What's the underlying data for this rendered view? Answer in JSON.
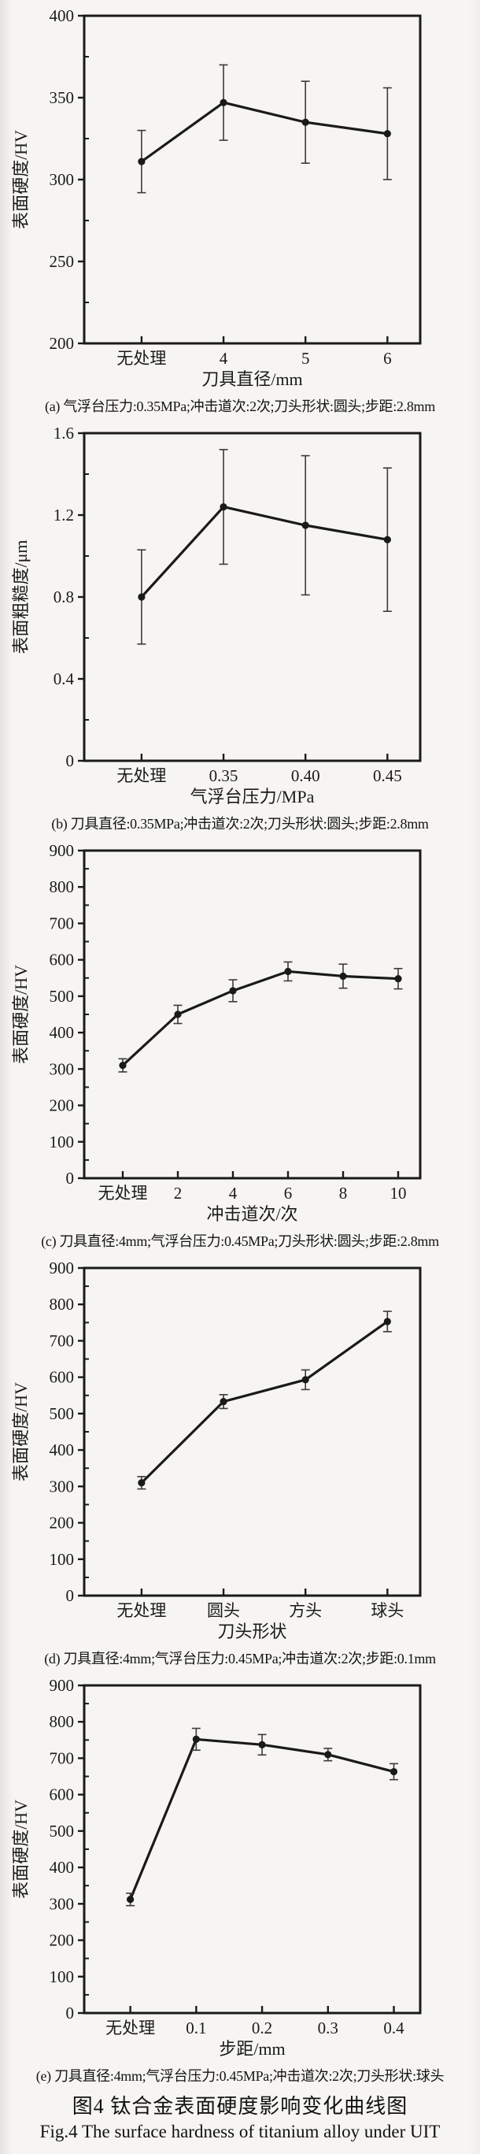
{
  "figure": {
    "title_cn": "图4  钛合金表面硬度影响变化曲线图",
    "title_en": "Fig.4  The surface hardness of titanium alloy under UIT",
    "ink_color": "#1a1a1a",
    "errorbar_color": "#3a3a3a",
    "paper_color": "#f6f5f2"
  },
  "chart_data": [
    {
      "id": "a",
      "type": "line",
      "ylabel": "表面硬度/HV",
      "xlabel": "刀具直径/mm",
      "ylim": [
        200,
        400
      ],
      "ytick_step": 50,
      "yminor_step": 25,
      "ydecimals": 0,
      "grid": "off",
      "legend": "none",
      "categories": [
        "无处理",
        "4",
        "5",
        "6"
      ],
      "values": [
        311,
        347,
        335,
        328
      ],
      "errors": [
        19,
        23,
        25,
        28
      ],
      "caption": "(a) 气浮台压力:0.35MPa;冲击道次:2次;刀头形状:圆头;步距:2.8mm"
    },
    {
      "id": "b",
      "type": "line",
      "ylabel": "表面粗糙度/μm",
      "xlabel": "气浮台压力/MPa",
      "ylim": [
        0,
        1.6
      ],
      "ytick_step": 0.4,
      "yminor_step": 0.2,
      "ydecimals": 1,
      "grid": "off",
      "legend": "none",
      "categories": [
        "无处理",
        "0.35",
        "0.40",
        "0.45"
      ],
      "values": [
        0.8,
        1.24,
        1.15,
        1.08
      ],
      "errors": [
        0.23,
        0.28,
        0.34,
        0.35
      ],
      "caption": "(b) 刀具直径:0.35MPa;冲击道次:2次;刀头形状:圆头;步距:2.8mm"
    },
    {
      "id": "c",
      "type": "line",
      "ylabel": "表面硬度/HV",
      "xlabel": "冲击道次/次",
      "ylim": [
        0,
        900
      ],
      "ytick_step": 100,
      "yminor_step": 50,
      "ydecimals": 0,
      "grid": "off",
      "legend": "none",
      "categories": [
        "无处理",
        "2",
        "4",
        "6",
        "8",
        "10"
      ],
      "values": [
        310,
        450,
        515,
        568,
        555,
        548
      ],
      "errors": [
        18,
        25,
        30,
        26,
        33,
        28
      ],
      "caption": "(c) 刀具直径:4mm;气浮台压力:0.45MPa;刀头形状:圆头;步距:2.8mm"
    },
    {
      "id": "d",
      "type": "line",
      "ylabel": "表面硬度/HV",
      "xlabel": "刀头形状",
      "ylim": [
        0,
        900
      ],
      "ytick_step": 100,
      "yminor_step": 50,
      "ydecimals": 0,
      "grid": "off",
      "legend": "none",
      "categories": [
        "无处理",
        "圆头",
        "方头",
        "球头"
      ],
      "values": [
        310,
        533,
        593,
        753
      ],
      "errors": [
        17,
        19,
        27,
        28
      ],
      "caption": "(d) 刀具直径:4mm;气浮台压力:0.45MPa;冲击道次:2次;步距:0.1mm"
    },
    {
      "id": "e",
      "type": "line",
      "ylabel": "表面硬度/HV",
      "xlabel": "步距/mm",
      "ylim": [
        0,
        900
      ],
      "ytick_step": 100,
      "yminor_step": 50,
      "ydecimals": 0,
      "grid": "off",
      "legend": "none",
      "categories": [
        "无处理",
        "0.1",
        "0.2",
        "0.3",
        "0.4"
      ],
      "values": [
        312,
        752,
        737,
        710,
        663
      ],
      "errors": [
        17,
        30,
        28,
        17,
        22
      ],
      "caption": "(e) 刀具直径:4mm;气浮台压力:0.45MPa;冲击道次:2次;刀头形状:球头"
    }
  ]
}
